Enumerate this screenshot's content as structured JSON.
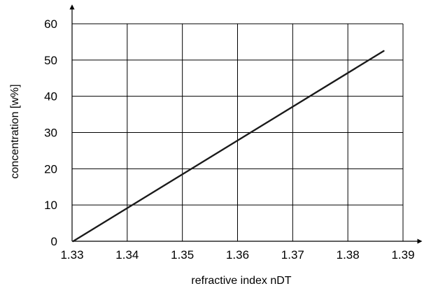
{
  "chart_data": {
    "type": "line",
    "title": "",
    "xlabel": "refractive index nDT",
    "ylabel": "concentration [w%]",
    "xlim": [
      1.33,
      1.39
    ],
    "ylim": [
      0,
      60
    ],
    "x_ticks": [
      "1.33",
      "1.34",
      "1.35",
      "1.36",
      "1.37",
      "1.38",
      "1.39"
    ],
    "y_ticks": [
      "0",
      "10",
      "20",
      "30",
      "40",
      "50",
      "60"
    ],
    "grid": true,
    "series": [
      {
        "x": [
          1.3302,
          1.3865
        ],
        "y": [
          0,
          52.5
        ]
      }
    ],
    "colors": {
      "line": "#1a1a1a",
      "grid": "#000000",
      "axis": "#000000"
    }
  }
}
